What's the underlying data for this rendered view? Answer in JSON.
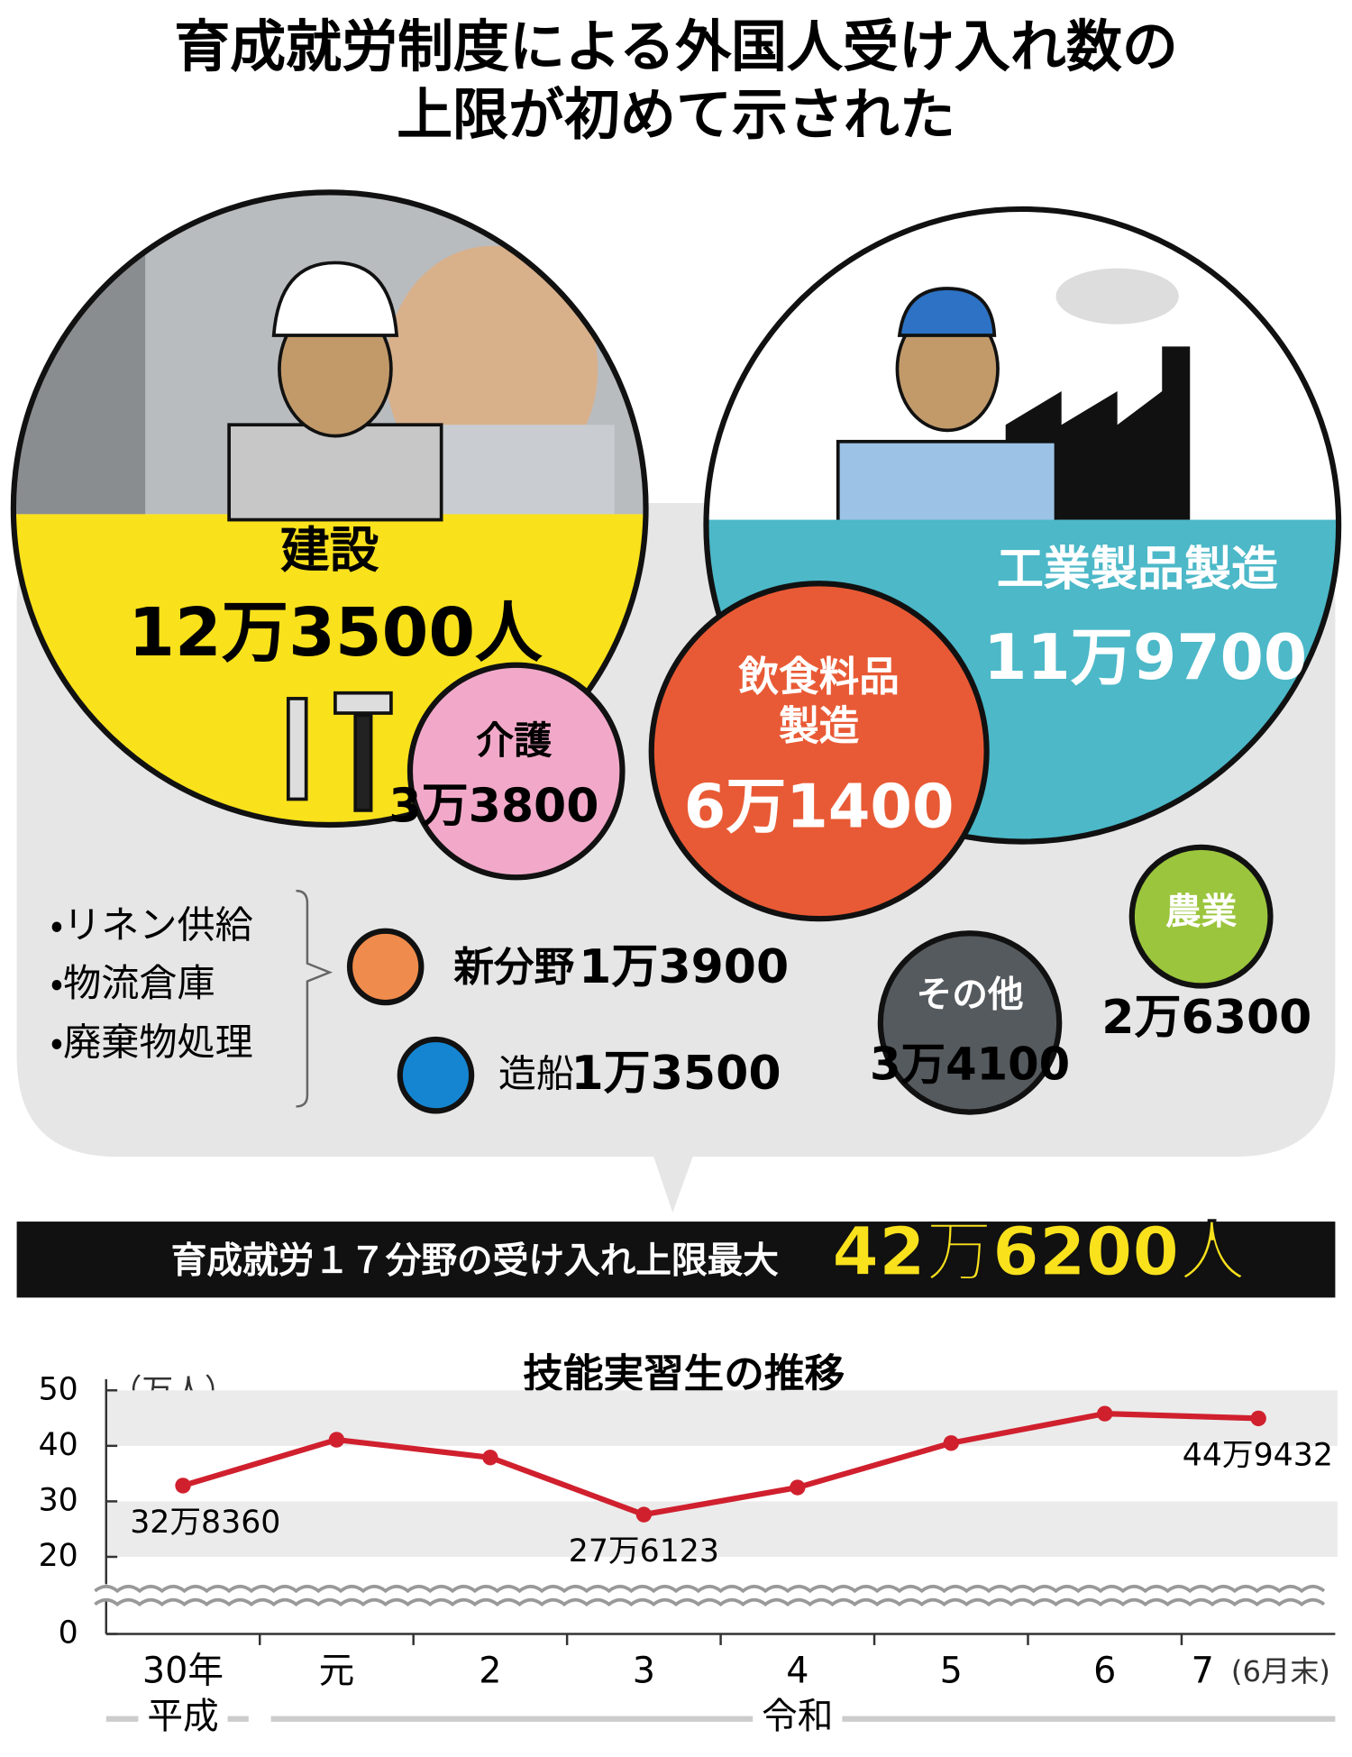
{
  "header": {
    "title_lines": [
      "育成就労制度による外国人受け入れ数の",
      "上限が初めて示された"
    ]
  },
  "sectors": [
    {
      "name_lines": [
        "建設"
      ],
      "label": "12万3500人"
    },
    {
      "name_lines": [
        "工業製品製造"
      ],
      "label": "11万9700"
    },
    {
      "name_lines": [
        "飲食料品",
        "製造"
      ],
      "label": "6万1400"
    },
    {
      "name_lines": [
        "介護"
      ],
      "label": "3万3800"
    },
    {
      "name_lines": [
        "農業"
      ],
      "label": "2万6300"
    },
    {
      "name_lines": [
        "その他"
      ],
      "label": "3万4100"
    },
    {
      "name_lines": [
        "新分野"
      ],
      "label": "1万3900"
    },
    {
      "name_lines": [
        "造船"
      ],
      "label": "1万3500"
    }
  ],
  "new_field_items": [
    "・リネン供給",
    "・物流倉庫",
    "・廃棄物処理"
  ],
  "total": {
    "label": "育成就労１７分野の受け入れ上限最大",
    "value": "42万6200人"
  },
  "chart_data": {
    "type": "line",
    "title": "技能実習生の推移",
    "unit_label": "（万人）",
    "categories": [
      "30年",
      "元",
      "2",
      "3",
      "4",
      "5",
      "6",
      "7"
    ],
    "x_note": "(6月末)",
    "era_labels": [
      "平成",
      "令和"
    ],
    "values": [
      32.836,
      41.1,
      37.9,
      27.6123,
      32.5,
      40.5,
      45.8,
      44.9432
    ],
    "value_labels": [
      "32万8360",
      null,
      null,
      "27万6123",
      null,
      null,
      null,
      "44万9432"
    ],
    "color": "#d0202e",
    "ylim": [
      0,
      50
    ],
    "yticks": [
      0,
      20,
      30,
      40,
      50
    ],
    "axis_break": true,
    "grid": "bands"
  }
}
